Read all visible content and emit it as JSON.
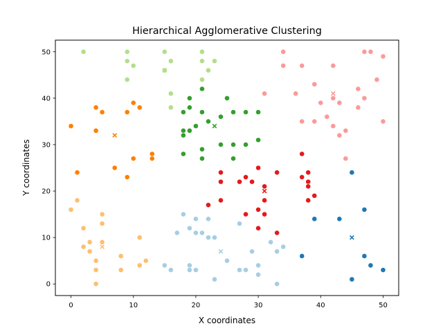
{
  "chart_data": {
    "type": "scatter",
    "title": "Hierarchical Agglomerative Clustering",
    "xlabel": "X coordinates",
    "ylabel": "Y coordinates",
    "xlim": [
      -2.5,
      52.5
    ],
    "ylim": [
      -2.5,
      52.5
    ],
    "xticks": [
      "0",
      "10",
      "20",
      "30",
      "40",
      "50"
    ],
    "yticks": [
      "0",
      "10",
      "20",
      "30",
      "40",
      "50"
    ],
    "grid": false,
    "legend": "none",
    "series": [
      {
        "color": "#1f78b4",
        "centroid": [
          45,
          10
        ],
        "points": [
          [
            45,
            24
          ],
          [
            47,
            16
          ],
          [
            39,
            14
          ],
          [
            43,
            14
          ],
          [
            37,
            6
          ],
          [
            47,
            6
          ],
          [
            48,
            4
          ],
          [
            50,
            3
          ],
          [
            45,
            1
          ]
        ]
      },
      {
        "color": "#e31a1c",
        "centroid": [
          31,
          20
        ],
        "points": [
          [
            37,
            28
          ],
          [
            30,
            25
          ],
          [
            24,
            24
          ],
          [
            33,
            24
          ],
          [
            38,
            24
          ],
          [
            37,
            23
          ],
          [
            28,
            23
          ],
          [
            27,
            22
          ],
          [
            29,
            22
          ],
          [
            24,
            22
          ],
          [
            38,
            22
          ],
          [
            38,
            21
          ],
          [
            31,
            21
          ],
          [
            39,
            19
          ],
          [
            24,
            18
          ],
          [
            31,
            18
          ],
          [
            38,
            18
          ],
          [
            22,
            17
          ],
          [
            30,
            16
          ],
          [
            31,
            15
          ],
          [
            28,
            15
          ],
          [
            30,
            12
          ],
          [
            33,
            11
          ]
        ]
      },
      {
        "color": "#33a02c",
        "centroid": [
          23,
          34
        ],
        "points": [
          [
            21,
            42
          ],
          [
            25,
            40
          ],
          [
            19,
            40
          ],
          [
            19,
            38
          ],
          [
            18,
            37
          ],
          [
            21,
            37
          ],
          [
            26,
            37
          ],
          [
            28,
            37
          ],
          [
            30,
            37
          ],
          [
            24,
            36
          ],
          [
            22,
            35
          ],
          [
            20,
            34
          ],
          [
            18,
            33
          ],
          [
            19,
            33
          ],
          [
            18,
            32
          ],
          [
            24,
            30
          ],
          [
            26,
            30
          ],
          [
            28,
            30
          ],
          [
            30,
            31
          ],
          [
            21,
            29
          ],
          [
            18,
            28
          ],
          [
            21,
            27
          ],
          [
            26,
            27
          ]
        ]
      },
      {
        "color": "#b2df8a",
        "centroid": [
          15,
          46
        ],
        "points": [
          [
            2,
            50
          ],
          [
            9,
            50
          ],
          [
            15,
            50
          ],
          [
            21,
            50
          ],
          [
            9,
            48
          ],
          [
            16,
            48
          ],
          [
            23,
            48
          ],
          [
            10,
            47
          ],
          [
            21,
            48
          ],
          [
            22,
            46
          ],
          [
            15,
            46
          ],
          [
            9,
            44
          ],
          [
            21,
            44
          ],
          [
            16,
            41
          ],
          [
            16,
            38
          ]
        ]
      },
      {
        "color": "#ff7f00",
        "centroid": [
          7,
          32
        ],
        "points": [
          [
            10,
            39
          ],
          [
            4,
            38
          ],
          [
            11,
            38
          ],
          [
            5,
            37
          ],
          [
            9,
            37
          ],
          [
            0,
            34
          ],
          [
            4,
            33
          ],
          [
            13,
            28
          ],
          [
            13,
            27
          ],
          [
            10,
            27
          ],
          [
            7,
            25
          ],
          [
            1,
            24
          ],
          [
            9,
            23
          ]
        ]
      },
      {
        "color": "#fdbf6f",
        "centroid": [
          5,
          8
        ],
        "points": [
          [
            1,
            18
          ],
          [
            0,
            16
          ],
          [
            5,
            15
          ],
          [
            5,
            13
          ],
          [
            2,
            12
          ],
          [
            11,
            10
          ],
          [
            3,
            9
          ],
          [
            5,
            9
          ],
          [
            2,
            8
          ],
          [
            3,
            7
          ],
          [
            8,
            6
          ],
          [
            4,
            5
          ],
          [
            12,
            5
          ],
          [
            11,
            4
          ],
          [
            4,
            3
          ],
          [
            8,
            3
          ],
          [
            4,
            0
          ]
        ]
      },
      {
        "color": "#a6cee3",
        "centroid": [
          24,
          7
        ],
        "points": [
          [
            18,
            15
          ],
          [
            20,
            14
          ],
          [
            22,
            14
          ],
          [
            19,
            12
          ],
          [
            17,
            11
          ],
          [
            20,
            11
          ],
          [
            21,
            11
          ],
          [
            23,
            10
          ],
          [
            22,
            10
          ],
          [
            27,
            13
          ],
          [
            32,
            9
          ],
          [
            34,
            8
          ],
          [
            29,
            7
          ],
          [
            33,
            7
          ],
          [
            25,
            5
          ],
          [
            15,
            4
          ],
          [
            19,
            4
          ],
          [
            30,
            4
          ],
          [
            16,
            3
          ],
          [
            19,
            3
          ],
          [
            20,
            3
          ],
          [
            27,
            3
          ],
          [
            28,
            3
          ],
          [
            30,
            2
          ],
          [
            23,
            1
          ],
          [
            33,
            0
          ]
        ]
      },
      {
        "color": "#fb9a99",
        "centroid": [
          42,
          41
        ],
        "points": [
          [
            34,
            50
          ],
          [
            47,
            50
          ],
          [
            48,
            50
          ],
          [
            50,
            49
          ],
          [
            34,
            47
          ],
          [
            37,
            47
          ],
          [
            42,
            47
          ],
          [
            49,
            44
          ],
          [
            39,
            43
          ],
          [
            46,
            42
          ],
          [
            31,
            41
          ],
          [
            36,
            41
          ],
          [
            47,
            40
          ],
          [
            42,
            40
          ],
          [
            40,
            39
          ],
          [
            43,
            39
          ],
          [
            46,
            38
          ],
          [
            41,
            36
          ],
          [
            37,
            35
          ],
          [
            39,
            35
          ],
          [
            50,
            35
          ],
          [
            42,
            34
          ],
          [
            44,
            33
          ],
          [
            43,
            32
          ],
          [
            44,
            27
          ]
        ]
      }
    ]
  }
}
